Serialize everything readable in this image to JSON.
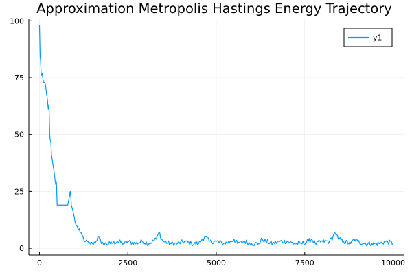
{
  "chart_data": {
    "type": "line",
    "title": "Approximation Metropolis Hastings Energy Trajectory",
    "xlabel": "",
    "ylabel": "",
    "xlim": [
      -300,
      10300
    ],
    "ylim": [
      -3,
      101
    ],
    "xticks": [
      0,
      2500,
      5000,
      7500,
      10000
    ],
    "yticks": [
      0,
      25,
      50,
      75,
      100
    ],
    "grid": true,
    "legend_position": "top-right",
    "series": [
      {
        "name": "y1",
        "color": "#009af9",
        "x": [
          1,
          20,
          30,
          50,
          80,
          100,
          120,
          150,
          170,
          200,
          220,
          250,
          270,
          290,
          300,
          320,
          340,
          360,
          380,
          400,
          420,
          440,
          460,
          480,
          500,
          600,
          700,
          800,
          850,
          870,
          890,
          900,
          920,
          950,
          980,
          1000,
          1050,
          1100,
          1150,
          1200,
          1250,
          1300,
          1400,
          1500,
          1600,
          1650,
          1700,
          1750,
          1800,
          2000,
          2200,
          2400,
          2500,
          2700,
          2900,
          3100,
          3300,
          3350,
          3400,
          3450,
          3500,
          3700,
          3900,
          4100,
          4300,
          4500,
          4600,
          4700,
          4800,
          5000,
          5200,
          5400,
          5500,
          5600,
          5800,
          6000,
          6200,
          6300,
          6400,
          6600,
          6800,
          7000,
          7200,
          7400,
          7600,
          7700,
          7800,
          8000,
          8200,
          8300,
          8350,
          8400,
          8450,
          8600,
          8800,
          8900,
          9000,
          9200,
          9400,
          9600,
          9800,
          10000
        ],
        "values": [
          98,
          84,
          83,
          76,
          77,
          74,
          73,
          73,
          72,
          68,
          66,
          61,
          63,
          50,
          48,
          47,
          41,
          39,
          37,
          35,
          33,
          30,
          28,
          29,
          19,
          19,
          19,
          19,
          23,
          25,
          22,
          19,
          18,
          16,
          14,
          12,
          10,
          8,
          7,
          6,
          4,
          3,
          2,
          2,
          3,
          5,
          4,
          2,
          2,
          2,
          3,
          2,
          3,
          2,
          3,
          2,
          4,
          6,
          7,
          4,
          3,
          2,
          2,
          3,
          2,
          2,
          4,
          5,
          3,
          3,
          2,
          3,
          4,
          2,
          3,
          2,
          2,
          4,
          3,
          2,
          3,
          3,
          2,
          2,
          3,
          4,
          2,
          3,
          3,
          5,
          7,
          6,
          4,
          3,
          2,
          4,
          3,
          2,
          2,
          2,
          3,
          2
        ]
      }
    ]
  }
}
